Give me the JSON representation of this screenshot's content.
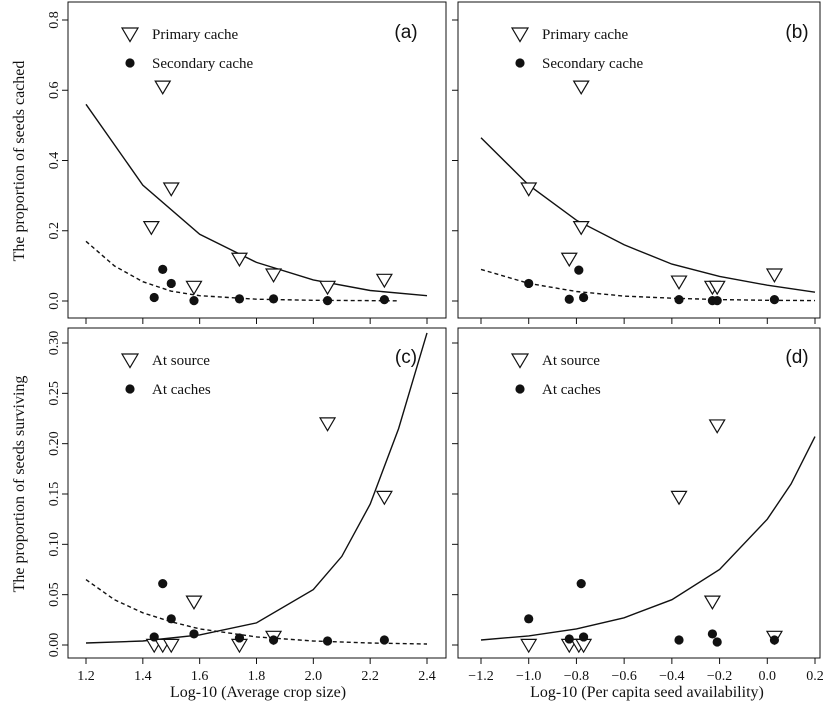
{
  "y_titles": {
    "top": "The proportion of seeds cached",
    "bottom": "The proportion of seeds surviving"
  },
  "x_titles": {
    "left": "Log-10 (Average crop size)",
    "right": "Log-10 (Per capita seed availability)"
  },
  "chart_data": [
    {
      "panel": "(a)",
      "type": "scatter",
      "xlim": [
        1.2,
        2.4
      ],
      "ylim": [
        0,
        0.8
      ],
      "xticks": [
        1.2,
        1.4,
        1.6,
        1.8,
        2.0,
        2.2,
        2.4
      ],
      "xtick_labels": [],
      "yticks": [
        0.0,
        0.2,
        0.4,
        0.6,
        0.8
      ],
      "ytick_labels": [
        "0.0",
        "0.2",
        "0.4",
        "0.6",
        "0.8"
      ],
      "legend_position": "top-left",
      "series": [
        {
          "name": "Primary cache",
          "marker": "triangle-down",
          "x": [
            1.43,
            1.47,
            1.5,
            1.58,
            1.74,
            1.86,
            2.05,
            2.25
          ],
          "y": [
            0.21,
            0.61,
            0.32,
            0.04,
            0.12,
            0.075,
            0.04,
            0.06
          ]
        },
        {
          "name": "Secondary cache",
          "marker": "filled-circle",
          "x": [
            1.44,
            1.47,
            1.5,
            1.58,
            1.74,
            1.86,
            2.05,
            2.25
          ],
          "y": [
            0.01,
            0.09,
            0.05,
            0.001,
            0.006,
            0.006,
            0.001,
            0.004
          ]
        }
      ],
      "curves": [
        {
          "style": "solid",
          "x": [
            1.2,
            1.4,
            1.6,
            1.8,
            2.0,
            2.2,
            2.4
          ],
          "y": [
            0.56,
            0.33,
            0.19,
            0.11,
            0.06,
            0.03,
            0.015
          ]
        },
        {
          "style": "dashed",
          "x": [
            1.2,
            1.3,
            1.4,
            1.5,
            1.6,
            1.8,
            2.0,
            2.3
          ],
          "y": [
            0.17,
            0.1,
            0.055,
            0.028,
            0.015,
            0.005,
            0.002,
            0.0005
          ]
        }
      ]
    },
    {
      "panel": "(b)",
      "type": "scatter",
      "xlim": [
        -1.2,
        0.2
      ],
      "ylim": [
        0,
        0.8
      ],
      "xticks": [
        -1.2,
        -1.0,
        -0.8,
        -0.6,
        -0.4,
        -0.2,
        0.0,
        0.2
      ],
      "xtick_labels": [],
      "yticks": [
        0.0,
        0.2,
        0.4,
        0.6,
        0.8
      ],
      "ytick_labels": [],
      "legend_position": "top-left",
      "series": [
        {
          "name": "Primary cache",
          "marker": "triangle-down",
          "x": [
            -1.0,
            -0.83,
            -0.78,
            -0.78,
            -0.37,
            -0.23,
            -0.21,
            0.03
          ],
          "y": [
            0.32,
            0.12,
            0.21,
            0.61,
            0.055,
            0.04,
            0.04,
            0.075
          ]
        },
        {
          "name": "Secondary cache",
          "marker": "filled-circle",
          "x": [
            -1.0,
            -0.83,
            -0.79,
            -0.77,
            -0.37,
            -0.23,
            -0.21,
            0.03
          ],
          "y": [
            0.05,
            0.005,
            0.088,
            0.01,
            0.004,
            0.001,
            0.001,
            0.004
          ]
        }
      ],
      "curves": [
        {
          "style": "solid",
          "x": [
            -1.2,
            -1.0,
            -0.8,
            -0.6,
            -0.4,
            -0.2,
            0.0,
            0.2
          ],
          "y": [
            0.465,
            0.33,
            0.23,
            0.16,
            0.105,
            0.07,
            0.045,
            0.025
          ]
        },
        {
          "style": "dashed",
          "x": [
            -1.2,
            -1.0,
            -0.8,
            -0.6,
            -0.4,
            -0.2,
            0.0,
            0.2
          ],
          "y": [
            0.09,
            0.05,
            0.027,
            0.014,
            0.008,
            0.004,
            0.002,
            0.001
          ]
        }
      ]
    },
    {
      "panel": "(c)",
      "type": "scatter",
      "xlim": [
        1.2,
        2.4
      ],
      "ylim": [
        0,
        0.3
      ],
      "xticks": [
        1.2,
        1.4,
        1.6,
        1.8,
        2.0,
        2.2,
        2.4
      ],
      "xtick_labels": [
        "1.2",
        "1.4",
        "1.6",
        "1.8",
        "2.0",
        "2.2",
        "2.4"
      ],
      "yticks": [
        0.0,
        0.05,
        0.1,
        0.15,
        0.2,
        0.25,
        0.3
      ],
      "ytick_labels": [
        "0.00",
        "0.05",
        "0.10",
        "0.15",
        "0.20",
        "0.25",
        "0.30"
      ],
      "legend_position": "top-left",
      "series": [
        {
          "name": "At source",
          "marker": "triangle-down",
          "x": [
            1.44,
            1.47,
            1.5,
            1.58,
            1.74,
            1.86,
            2.05,
            2.25
          ],
          "y": [
            0.0,
            0.0,
            0.0,
            0.043,
            0.0,
            0.008,
            0.22,
            0.147
          ]
        },
        {
          "name": "At caches",
          "marker": "filled-circle",
          "x": [
            1.44,
            1.47,
            1.5,
            1.58,
            1.74,
            1.86,
            2.05,
            2.25
          ],
          "y": [
            0.008,
            0.061,
            0.026,
            0.011,
            0.007,
            0.005,
            0.004,
            0.005
          ]
        }
      ],
      "curves": [
        {
          "style": "solid",
          "x": [
            1.2,
            1.4,
            1.6,
            1.8,
            2.0,
            2.1,
            2.2,
            2.3,
            2.4
          ],
          "y": [
            0.002,
            0.004,
            0.01,
            0.022,
            0.055,
            0.088,
            0.14,
            0.215,
            0.31
          ]
        },
        {
          "style": "dashed",
          "x": [
            1.2,
            1.3,
            1.4,
            1.5,
            1.6,
            1.8,
            2.0,
            2.2,
            2.4
          ],
          "y": [
            0.065,
            0.045,
            0.032,
            0.023,
            0.016,
            0.008,
            0.004,
            0.002,
            0.001
          ]
        }
      ]
    },
    {
      "panel": "(d)",
      "type": "scatter",
      "xlim": [
        -1.2,
        0.2
      ],
      "ylim": [
        0,
        0.3
      ],
      "xticks": [
        -1.2,
        -1.0,
        -0.8,
        -0.6,
        -0.4,
        -0.2,
        0.0,
        0.2
      ],
      "xtick_labels": [
        "−1.2",
        "−1.0",
        "−0.8",
        "−0.6",
        "−0.4",
        "−0.2",
        "0.0",
        "0.2"
      ],
      "yticks": [
        0.0,
        0.05,
        0.1,
        0.15,
        0.2,
        0.25,
        0.3
      ],
      "ytick_labels": [],
      "legend_position": "top-left",
      "series": [
        {
          "name": "At source",
          "marker": "triangle-down",
          "x": [
            -1.0,
            -0.83,
            -0.79,
            -0.77,
            -0.37,
            -0.23,
            -0.21,
            0.03
          ],
          "y": [
            0.0,
            0.0,
            0.0,
            0.0,
            0.147,
            0.043,
            0.218,
            0.008
          ]
        },
        {
          "name": "At caches",
          "marker": "filled-circle",
          "x": [
            -1.0,
            -0.83,
            -0.78,
            -0.77,
            -0.37,
            -0.23,
            -0.21,
            0.03
          ],
          "y": [
            0.026,
            0.006,
            0.061,
            0.008,
            0.005,
            0.011,
            0.003,
            0.005
          ]
        }
      ],
      "curves": [
        {
          "style": "solid",
          "x": [
            -1.2,
            -1.0,
            -0.8,
            -0.6,
            -0.4,
            -0.2,
            0.0,
            0.1,
            0.2
          ],
          "y": [
            0.005,
            0.009,
            0.016,
            0.027,
            0.045,
            0.075,
            0.125,
            0.16,
            0.207
          ]
        }
      ]
    }
  ]
}
